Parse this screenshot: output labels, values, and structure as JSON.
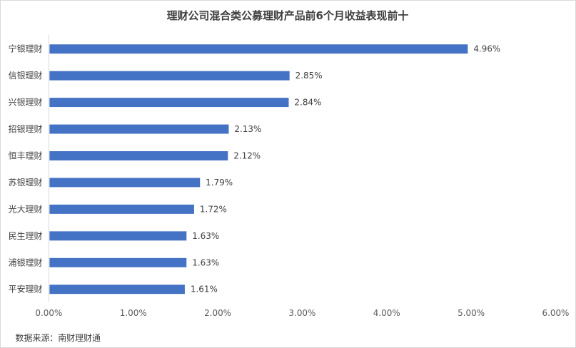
{
  "chart_data": {
    "type": "bar",
    "orientation": "horizontal",
    "title": "理财公司混合类公募理财产品前6个月收益表现前十",
    "categories": [
      "宁银理财",
      "信银理财",
      "兴银理财",
      "招银理财",
      "恒丰理财",
      "苏银理财",
      "光大理财",
      "民生理财",
      "浦银理财",
      "平安理财"
    ],
    "values": [
      4.96,
      2.85,
      2.84,
      2.13,
      2.12,
      1.79,
      1.72,
      1.63,
      1.63,
      1.61
    ],
    "value_labels": [
      "4.96%",
      "2.85%",
      "2.84%",
      "2.13%",
      "2.12%",
      "1.79%",
      "1.72%",
      "1.63%",
      "1.63%",
      "1.61%"
    ],
    "xlim": [
      0,
      6
    ],
    "x_ticks": [
      0,
      1,
      2,
      3,
      4,
      5,
      6
    ],
    "x_tick_labels": [
      "0.00%",
      "1.00%",
      "2.00%",
      "3.00%",
      "4.00%",
      "5.00%",
      "6.00%"
    ],
    "xlabel": "",
    "ylabel": "",
    "grid": false,
    "bar_color": "#4472c4",
    "source": "数据来源：南财理财通"
  }
}
